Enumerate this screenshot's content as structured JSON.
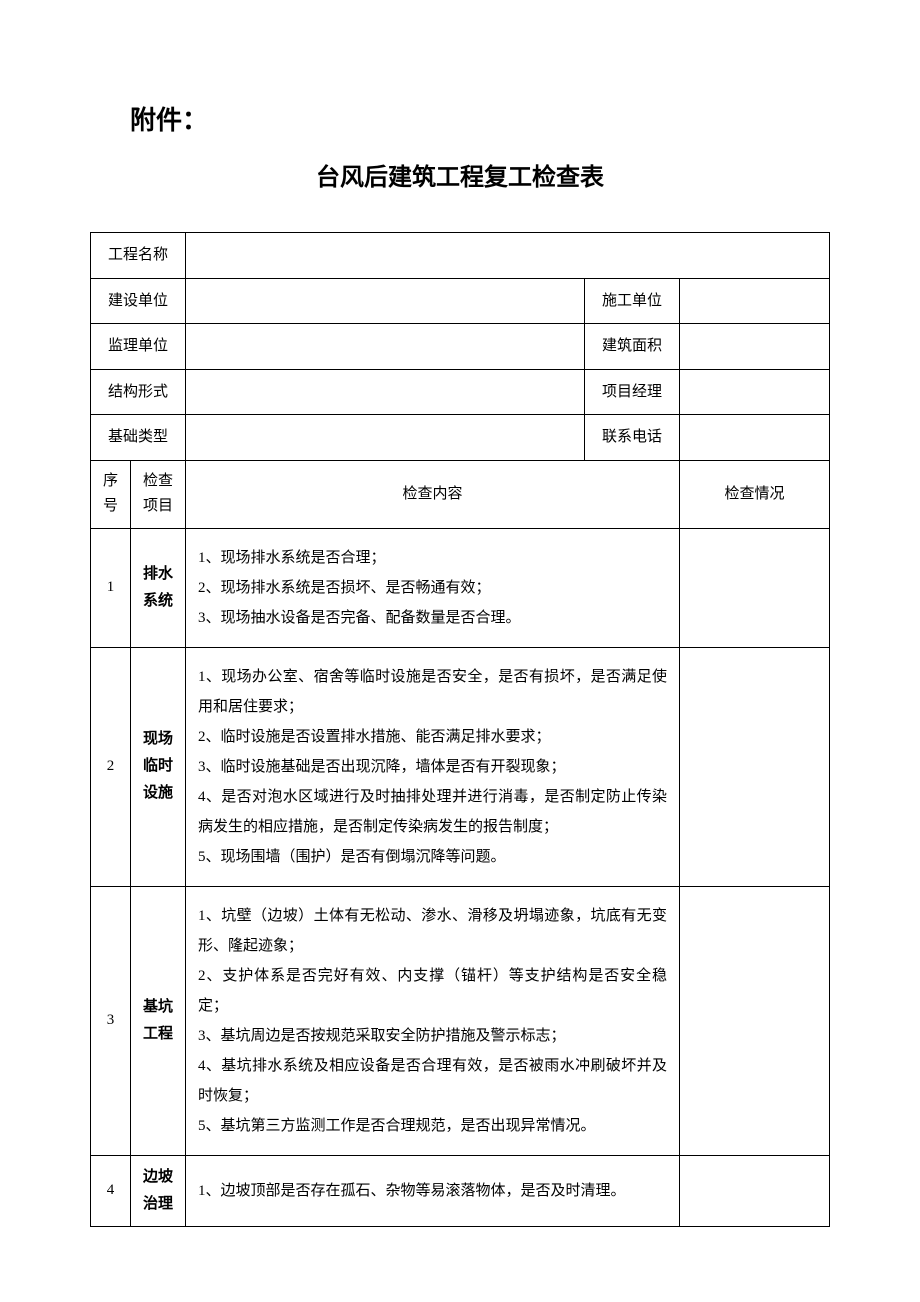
{
  "attachment_label": "附件：",
  "title": "台风后建筑工程复工检查表",
  "info_rows": {
    "project_name_label": "工程名称",
    "construction_unit_label": "建设单位",
    "contractor_label": "施工单位",
    "supervision_unit_label": "监理单位",
    "building_area_label": "建筑面积",
    "structure_type_label": "结构形式",
    "project_manager_label": "项目经理",
    "foundation_type_label": "基础类型",
    "contact_phone_label": "联系电话"
  },
  "table_headers": {
    "seq": "序号",
    "item": "检查项目",
    "content": "检查内容",
    "status": "检查情况"
  },
  "rows": [
    {
      "seq": "1",
      "item": "排水系统",
      "content": "1、现场排水系统是否合理；\n2、现场排水系统是否损坏、是否畅通有效；\n3、现场抽水设备是否完备、配备数量是否合理。"
    },
    {
      "seq": "2",
      "item": "现场临时设施",
      "content": "1、现场办公室、宿舍等临时设施是否安全，是否有损坏，是否满足使用和居住要求；\n2、临时设施是否设置排水措施、能否满足排水要求；\n3、临时设施基础是否出现沉降，墙体是否有开裂现象；\n4、是否对泡水区域进行及时抽排处理并进行消毒，是否制定防止传染病发生的相应措施，是否制定传染病发生的报告制度；\n5、现场围墙（围护）是否有倒塌沉降等问题。"
    },
    {
      "seq": "3",
      "item": "基坑工程",
      "content": "1、坑壁（边坡）土体有无松动、渗水、滑移及坍塌迹象，坑底有无变形、隆起迹象；\n2、支护体系是否完好有效、内支撑（锚杆）等支护结构是否安全稳定；\n3、基坑周边是否按规范采取安全防护措施及警示标志；\n4、基坑排水系统及相应设备是否合理有效，是否被雨水冲刷破坏并及时恢复；\n5、基坑第三方监测工作是否合理规范，是否出现异常情况。"
    },
    {
      "seq": "4",
      "item": "边坡治理",
      "content": "1、边坡顶部是否存在孤石、杂物等易滚落物体，是否及时清理。"
    }
  ]
}
